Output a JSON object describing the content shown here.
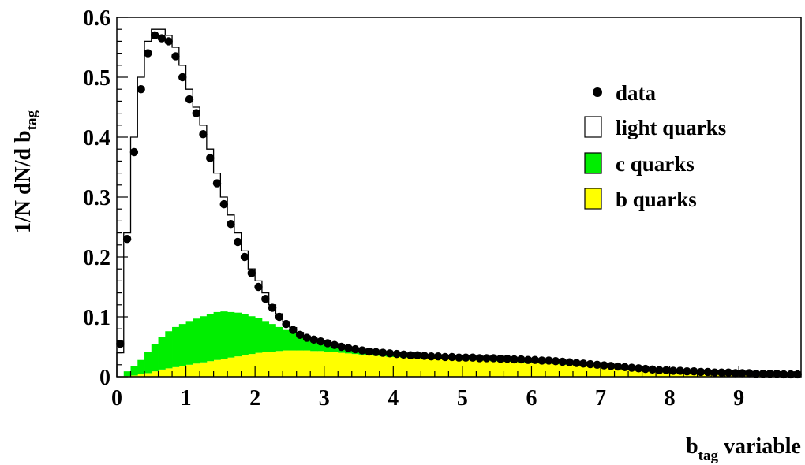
{
  "chart_data": {
    "type": "bar",
    "xlabel_main": "b",
    "xlabel_sub": "tag",
    "xlabel_suffix": " variable",
    "ylabel_main": "1/N dN/d b",
    "ylabel_sub": "tag",
    "xlim": [
      0,
      9.9
    ],
    "ylim": [
      0,
      0.6
    ],
    "x_ticks": [
      "0",
      "1",
      "2",
      "3",
      "4",
      "5",
      "6",
      "7",
      "8",
      "9"
    ],
    "y_ticks": [
      "0",
      "0.1",
      "0.2",
      "0.3",
      "0.4",
      "0.5",
      "0.6"
    ],
    "bin_width": 0.1,
    "legend_position": "top-right",
    "colors": {
      "light": "#ffffff",
      "c": "#00ee00",
      "b": "#ffff00",
      "data": "#000000"
    },
    "legend": [
      {
        "label": "data",
        "marker": "dot"
      },
      {
        "label": "light quarks",
        "marker": "light"
      },
      {
        "label": "c quarks",
        "marker": "c"
      },
      {
        "label": "b quarks",
        "marker": "b"
      }
    ],
    "series": [
      {
        "name": "b quarks",
        "role": "b",
        "x": [
          0.05,
          0.15,
          0.25,
          0.35,
          0.45,
          0.55,
          0.65,
          0.75,
          0.85,
          0.95,
          1.05,
          1.15,
          1.25,
          1.35,
          1.45,
          1.55,
          1.65,
          1.75,
          1.85,
          1.95,
          2.05,
          2.15,
          2.25,
          2.35,
          2.45,
          2.55,
          2.65,
          2.75,
          2.85,
          2.95,
          3.05,
          3.15,
          3.25,
          3.35,
          3.45,
          3.55,
          3.65,
          3.75,
          3.85,
          3.95,
          4.05,
          4.15,
          4.25,
          4.35,
          4.45,
          4.55,
          4.65,
          4.75,
          4.85,
          4.95,
          5.05,
          5.15,
          5.25,
          5.35,
          5.45,
          5.55,
          5.65,
          5.75,
          5.85,
          5.95,
          6.05,
          6.15,
          6.25,
          6.35,
          6.45,
          6.55,
          6.65,
          6.75,
          6.85,
          6.95,
          7.05,
          7.15,
          7.25,
          7.35,
          7.45,
          7.55,
          7.65,
          7.75,
          7.85,
          7.95,
          8.05,
          8.15,
          8.25,
          8.35,
          8.45,
          8.55,
          8.65,
          8.75,
          8.85,
          8.95,
          9.05,
          9.15,
          9.25,
          9.35,
          9.45,
          9.55,
          9.65,
          9.75,
          9.85
        ],
        "values": [
          0.0,
          0.001,
          0.002,
          0.004,
          0.006,
          0.009,
          0.012,
          0.014,
          0.016,
          0.018,
          0.02,
          0.022,
          0.024,
          0.026,
          0.028,
          0.03,
          0.032,
          0.034,
          0.036,
          0.038,
          0.04,
          0.041,
          0.042,
          0.043,
          0.044,
          0.044,
          0.044,
          0.044,
          0.043,
          0.043,
          0.042,
          0.041,
          0.04,
          0.039,
          0.038,
          0.037,
          0.036,
          0.035,
          0.034,
          0.033,
          0.033,
          0.032,
          0.032,
          0.031,
          0.031,
          0.03,
          0.03,
          0.03,
          0.029,
          0.029,
          0.028,
          0.028,
          0.027,
          0.027,
          0.026,
          0.026,
          0.025,
          0.025,
          0.024,
          0.024,
          0.023,
          0.022,
          0.022,
          0.021,
          0.02,
          0.02,
          0.019,
          0.018,
          0.017,
          0.017,
          0.016,
          0.015,
          0.014,
          0.013,
          0.012,
          0.012,
          0.011,
          0.01,
          0.009,
          0.009,
          0.008,
          0.008,
          0.007,
          0.007,
          0.006,
          0.006,
          0.006,
          0.005,
          0.005,
          0.005,
          0.004,
          0.004,
          0.004,
          0.004,
          0.003,
          0.003,
          0.003,
          0.003,
          0.003
        ]
      },
      {
        "name": "c quarks",
        "role": "c",
        "x": [
          0.05,
          0.15,
          0.25,
          0.35,
          0.45,
          0.55,
          0.65,
          0.75,
          0.85,
          0.95,
          1.05,
          1.15,
          1.25,
          1.35,
          1.45,
          1.55,
          1.65,
          1.75,
          1.85,
          1.95,
          2.05,
          2.15,
          2.25,
          2.35,
          2.45,
          2.55,
          2.65,
          2.75,
          2.85,
          2.95,
          3.05,
          3.15,
          3.25,
          3.35,
          3.45,
          3.55,
          3.65,
          3.75,
          3.85,
          3.95,
          4.05,
          4.15,
          4.25,
          4.35,
          4.45,
          4.55,
          4.65,
          4.75,
          4.85,
          4.95,
          5.05,
          5.15,
          5.25,
          5.35,
          5.45,
          5.55,
          5.65,
          5.75,
          5.85,
          5.95,
          6.05,
          6.15,
          6.25,
          6.35,
          6.45,
          6.55,
          6.65,
          6.75,
          6.85,
          6.95,
          7.05,
          7.15,
          7.25,
          7.35,
          7.45,
          7.55,
          7.65,
          7.75,
          7.85,
          7.95,
          8.05,
          8.15,
          8.25,
          8.35,
          8.45,
          8.55,
          8.65,
          8.75,
          8.85,
          8.95,
          9.05,
          9.15,
          9.25,
          9.35,
          9.45,
          9.55,
          9.65,
          9.75,
          9.85
        ],
        "values": [
          0.0,
          0.008,
          0.016,
          0.024,
          0.036,
          0.046,
          0.055,
          0.062,
          0.067,
          0.07,
          0.073,
          0.075,
          0.077,
          0.079,
          0.08,
          0.079,
          0.076,
          0.073,
          0.068,
          0.063,
          0.058,
          0.052,
          0.046,
          0.04,
          0.034,
          0.029,
          0.024,
          0.02,
          0.017,
          0.014,
          0.012,
          0.01,
          0.009,
          0.008,
          0.007,
          0.006,
          0.005,
          0.005,
          0.004,
          0.004,
          0.004,
          0.003,
          0.003,
          0.003,
          0.003,
          0.003,
          0.002,
          0.002,
          0.002,
          0.002,
          0.002,
          0.002,
          0.002,
          0.002,
          0.002,
          0.002,
          0.002,
          0.002,
          0.002,
          0.002,
          0.002,
          0.002,
          0.002,
          0.002,
          0.002,
          0.002,
          0.001,
          0.001,
          0.001,
          0.001,
          0.001,
          0.001,
          0.001,
          0.001,
          0.001,
          0.001,
          0.001,
          0.001,
          0.001,
          0.001,
          0.001,
          0.001,
          0.001,
          0.001,
          0.001,
          0.001,
          0.001,
          0.001,
          0.001,
          0.001,
          0.001,
          0.001,
          0.001,
          0.001,
          0.001,
          0.001,
          0.001,
          0.001,
          0.001
        ]
      },
      {
        "name": "light quarks",
        "role": "total",
        "x": [
          0.05,
          0.15,
          0.25,
          0.35,
          0.45,
          0.55,
          0.65,
          0.75,
          0.85,
          0.95,
          1.05,
          1.15,
          1.25,
          1.35,
          1.45,
          1.55,
          1.65,
          1.75,
          1.85,
          1.95,
          2.05,
          2.15,
          2.25,
          2.35,
          2.45,
          2.55,
          2.65,
          2.75,
          2.85,
          2.95,
          3.05,
          3.15,
          3.25,
          3.35,
          3.45,
          3.55,
          3.65,
          3.75,
          3.85,
          3.95,
          4.05,
          4.15,
          4.25,
          4.35,
          4.45,
          4.55,
          4.65,
          4.75,
          4.85,
          4.95,
          5.05,
          5.15,
          5.25,
          5.35,
          5.45,
          5.55,
          5.65,
          5.75,
          5.85,
          5.95,
          6.05,
          6.15,
          6.25,
          6.35,
          6.45,
          6.55,
          6.65,
          6.75,
          6.85,
          6.95,
          7.05,
          7.15,
          7.25,
          7.35,
          7.45,
          7.55,
          7.65,
          7.75,
          7.85,
          7.95,
          8.05,
          8.15,
          8.25,
          8.35,
          8.45,
          8.55,
          8.65,
          8.75,
          8.85,
          8.95,
          9.05,
          9.15,
          9.25,
          9.35,
          9.45,
          9.55,
          9.65,
          9.75,
          9.85
        ],
        "values": [
          0.04,
          0.24,
          0.4,
          0.5,
          0.56,
          0.58,
          0.58,
          0.57,
          0.55,
          0.52,
          0.48,
          0.45,
          0.42,
          0.38,
          0.34,
          0.3,
          0.27,
          0.24,
          0.21,
          0.18,
          0.16,
          0.14,
          0.12,
          0.105,
          0.092,
          0.082,
          0.074,
          0.068,
          0.064,
          0.061,
          0.058,
          0.055,
          0.052,
          0.049,
          0.047,
          0.045,
          0.043,
          0.041,
          0.04,
          0.039,
          0.038,
          0.037,
          0.036,
          0.036,
          0.035,
          0.034,
          0.034,
          0.033,
          0.033,
          0.032,
          0.032,
          0.032,
          0.031,
          0.031,
          0.031,
          0.03,
          0.03,
          0.029,
          0.029,
          0.028,
          0.028,
          0.027,
          0.027,
          0.026,
          0.025,
          0.024,
          0.023,
          0.022,
          0.021,
          0.02,
          0.019,
          0.018,
          0.017,
          0.016,
          0.015,
          0.014,
          0.013,
          0.012,
          0.011,
          0.011,
          0.01,
          0.01,
          0.009,
          0.009,
          0.008,
          0.008,
          0.007,
          0.007,
          0.007,
          0.006,
          0.006,
          0.006,
          0.005,
          0.005,
          0.005,
          0.005,
          0.004,
          0.004,
          0.004
        ]
      },
      {
        "name": "data",
        "role": "data",
        "x": [
          0.05,
          0.15,
          0.25,
          0.35,
          0.45,
          0.55,
          0.65,
          0.75,
          0.85,
          0.95,
          1.05,
          1.15,
          1.25,
          1.35,
          1.45,
          1.55,
          1.65,
          1.75,
          1.85,
          1.95,
          2.05,
          2.15,
          2.25,
          2.35,
          2.45,
          2.55,
          2.65,
          2.75,
          2.85,
          2.95,
          3.05,
          3.15,
          3.25,
          3.35,
          3.45,
          3.55,
          3.65,
          3.75,
          3.85,
          3.95,
          4.05,
          4.15,
          4.25,
          4.35,
          4.45,
          4.55,
          4.65,
          4.75,
          4.85,
          4.95,
          5.05,
          5.15,
          5.25,
          5.35,
          5.45,
          5.55,
          5.65,
          5.75,
          5.85,
          5.95,
          6.05,
          6.15,
          6.25,
          6.35,
          6.45,
          6.55,
          6.65,
          6.75,
          6.85,
          6.95,
          7.05,
          7.15,
          7.25,
          7.35,
          7.45,
          7.55,
          7.65,
          7.75,
          7.85,
          7.95,
          8.05,
          8.15,
          8.25,
          8.35,
          8.45,
          8.55,
          8.65,
          8.75,
          8.85,
          8.95,
          9.05,
          9.15,
          9.25,
          9.35,
          9.45,
          9.55,
          9.65,
          9.75,
          9.85
        ],
        "values": [
          0.055,
          0.23,
          0.375,
          0.48,
          0.54,
          0.57,
          0.565,
          0.56,
          0.535,
          0.5,
          0.463,
          0.44,
          0.405,
          0.365,
          0.323,
          0.288,
          0.255,
          0.225,
          0.2,
          0.173,
          0.15,
          0.13,
          0.115,
          0.1,
          0.088,
          0.078,
          0.07,
          0.065,
          0.062,
          0.059,
          0.056,
          0.053,
          0.05,
          0.048,
          0.046,
          0.044,
          0.042,
          0.041,
          0.04,
          0.039,
          0.038,
          0.037,
          0.036,
          0.036,
          0.035,
          0.034,
          0.034,
          0.033,
          0.033,
          0.032,
          0.032,
          0.032,
          0.031,
          0.031,
          0.031,
          0.03,
          0.03,
          0.029,
          0.029,
          0.028,
          0.028,
          0.027,
          0.027,
          0.026,
          0.025,
          0.024,
          0.023,
          0.022,
          0.021,
          0.02,
          0.019,
          0.018,
          0.017,
          0.016,
          0.015,
          0.014,
          0.013,
          0.012,
          0.011,
          0.011,
          0.01,
          0.01,
          0.009,
          0.009,
          0.008,
          0.008,
          0.007,
          0.007,
          0.007,
          0.006,
          0.006,
          0.006,
          0.005,
          0.005,
          0.005,
          0.005,
          0.004,
          0.004,
          0.004
        ]
      }
    ]
  }
}
